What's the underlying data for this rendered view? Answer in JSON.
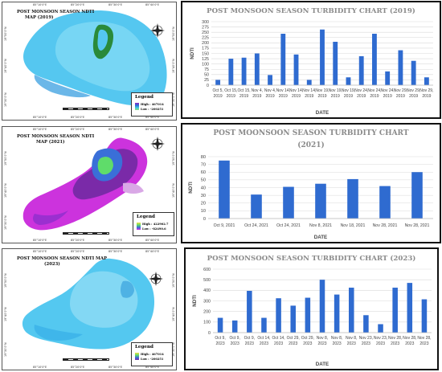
{
  "colors": {
    "bar": "#2f6bd0",
    "grid": "#d9d9d9",
    "title": "#8a8a8a",
    "chart_border": "#111111"
  },
  "maps": [
    {
      "title_line1": "POST MONSOON SEASON NDTI",
      "title_line2": "MAP (2019)",
      "legend_title": "Legend",
      "legend_high": "High : 467014",
      "legend_low": "Low : -200251",
      "coords_top": [
        "85°10'0\"E",
        "85°20'0\"E",
        "85°30'0\"E",
        "85°40'0\"E"
      ],
      "coords_bottom": [
        "85°10'0\"E",
        "85°20'0\"E",
        "85°30'0\"E",
        "85°40'0\"E"
      ],
      "coords_left": [
        "19°50'0\"N",
        "19°40'0\"N",
        "19°30'0\"N"
      ],
      "coords_right": [
        "19°50'0\"N",
        "19°40'0\"N",
        "19°30'0\"N"
      ]
    },
    {
      "title_line1": "POST MONSOON SEASON NDTI",
      "title_line2": "MAP (2021)",
      "legend_title": "Legend",
      "legend_high": "High : 422902.7",
      "legend_low": "Low : -82490.6",
      "coords_top": [
        "85°10'0\"E",
        "85°20'0\"E",
        "85°30'0\"E",
        "85°40'0\"E"
      ],
      "coords_bottom": [
        "85°10'0\"E",
        "85°20'0\"E",
        "85°30'0\"E",
        "85°40'0\"E"
      ],
      "coords_left": [
        "19°50'0\"N",
        "19°40'0\"N",
        "19°30'0\"N"
      ],
      "coords_right": [
        "19°50'0\"N",
        "19°40'0\"N",
        "19°30'0\"N"
      ]
    },
    {
      "title_line1": "POST MONSOON SEASON NDTI MAP",
      "title_line2": "(2023)",
      "legend_title": "Legend",
      "legend_high": "High : 467014",
      "legend_low": "Low : -200251",
      "coords_top": [
        "85°10'0\"E",
        "85°20'0\"E",
        "85°30'0\"E",
        "85°40'0\"E"
      ],
      "coords_bottom": [
        "85°10'0\"E",
        "85°20'0\"E",
        "85°30'0\"E",
        "85°40'0\"E"
      ],
      "coords_left": [
        "19°50'0\"N",
        "19°40'0\"N",
        "19°30'0\"N"
      ],
      "coords_right": [
        "19°50'0\"N",
        "19°40'0\"N",
        "19°30'0\"N"
      ]
    }
  ],
  "chart_data": [
    {
      "type": "bar",
      "title": "POST MONSOON SEASON TURBIDITY CHART (2019)",
      "xlabel": "DATE",
      "ylabel": "NDTI",
      "ylim": [
        0,
        300
      ],
      "yticks": [
        0,
        25,
        50,
        75,
        100,
        125,
        150,
        175,
        200,
        225,
        250,
        275,
        300
      ],
      "categories": [
        "Oct 5, 2019",
        "Oct 15, 2019",
        "Oct 15, 2019",
        "Nov 4, 2019",
        "Nov 4, 2019",
        "Nov 14, 2019",
        "Nov 14, 2019",
        "Nov 14, 2019",
        "Nov 19, 2019",
        "Nov 19, 2019",
        "Nov 19, 2019",
        "Nov 24, 2019",
        "Nov 24, 2019",
        "Nov 24, 2019",
        "Nov 29, 2019",
        "Nov 29, 2019",
        "Nov 29, 2019"
      ],
      "values": [
        25,
        125,
        130,
        150,
        48,
        243,
        145,
        25,
        263,
        205,
        37,
        137,
        243,
        65,
        165,
        115,
        37
      ],
      "grid": true
    },
    {
      "type": "bar",
      "title_line1": "POST MOONSOON SEASON TURBIDITY CHART",
      "title_line2": "(2021)",
      "xlabel": "DATE",
      "ylabel": "NDTI",
      "ylim": [
        0,
        80
      ],
      "yticks": [
        0,
        10,
        20,
        30,
        40,
        50,
        60,
        70,
        80
      ],
      "categories": [
        "Oct 9, 2021",
        "Oct 24, 2021",
        "Oct 24, 2021",
        "Nov 8, 2021",
        "Nov 18, 2021",
        "Nov 28, 2021",
        "Nov 28, 2021"
      ],
      "values": [
        75,
        31,
        41,
        45,
        51,
        42,
        60
      ],
      "grid": true
    },
    {
      "type": "bar",
      "title": "POST MONSOON SEASON TURBIDITY CHART (2023)",
      "xlabel": "DATE",
      "ylabel": "NDTI",
      "ylim": [
        0,
        600
      ],
      "yticks": [
        0,
        100,
        200,
        300,
        400,
        500,
        600
      ],
      "categories": [
        "Oct 9, 2023",
        "Oct 9, 2023",
        "Oct 9, 2023",
        "Oct 14, 2023",
        "Oct 14, 2023",
        "Oct 29, 2023",
        "Oct 29, 2023",
        "Nov 8, 2023",
        "Nov 8, 2023",
        "Nov 8, 2023",
        "Nov 23, 2023",
        "Nov 23, 2023",
        "Nov 28, 2023",
        "Nov 28, 2023",
        "Nov 28, 2023"
      ],
      "values": [
        140,
        115,
        395,
        140,
        325,
        255,
        330,
        500,
        360,
        425,
        165,
        80,
        425,
        470,
        315
      ],
      "grid": true
    }
  ]
}
